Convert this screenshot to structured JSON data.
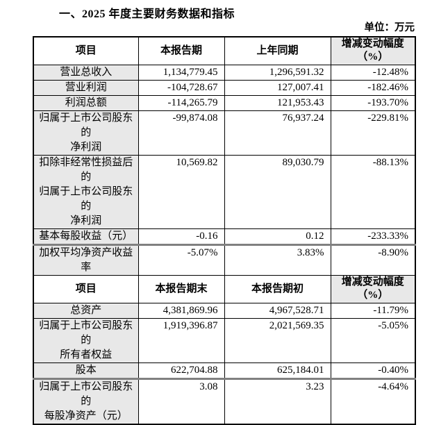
{
  "page": {
    "title": "一、2025 年度主要财务数据和指标",
    "unit_label": "单位：万元"
  },
  "colors": {
    "label_bg": "#e8e8e8",
    "border": "#000000",
    "divider": "#808080"
  },
  "table": {
    "sections": [
      {
        "headers": [
          "项目",
          "本报告期",
          "上年同期"
        ],
        "change_header_lines": [
          "增减变动幅度",
          "（%）"
        ],
        "rows": [
          {
            "label_lines": [
              "营业总收入"
            ],
            "current": "1,134,779.45",
            "prior": "1,296,591.32",
            "change": "-12.48%"
          },
          {
            "label_lines": [
              "营业利润"
            ],
            "current": "-104,728.67",
            "prior": "127,007.41",
            "change": "-182.46%"
          },
          {
            "label_lines": [
              "利润总额"
            ],
            "current": "-114,265.79",
            "prior": "121,953.43",
            "change": "-193.70%"
          },
          {
            "label_lines": [
              "归属于上市公司股东的",
              "净利润"
            ],
            "current": "-99,874.08",
            "prior": "76,937.24",
            "change": "-229.81%"
          },
          {
            "label_lines": [
              "扣除非经常性损益后的",
              "归属于上市公司股东的",
              "净利润"
            ],
            "current": "10,569.82",
            "prior": "89,030.79",
            "change": "-88.13%"
          },
          {
            "label_lines": [
              "基本每股收益（元）"
            ],
            "current": "-0.16",
            "prior": "0.12",
            "change": "-233.33%"
          },
          {
            "label_lines": [
              "加权平均净资产收益率"
            ],
            "current": "-5.07%",
            "prior": "3.83%",
            "change": "-8.90%",
            "thick_top": true
          }
        ]
      },
      {
        "headers": [
          "项目",
          "本报告期末",
          "本报告期初"
        ],
        "change_header_lines": [
          "增减变动幅度",
          "（%）"
        ],
        "rows": [
          {
            "label_lines": [
              "总资产"
            ],
            "current": "4,381,869.96",
            "prior": "4,967,528.71",
            "change": "-11.79%"
          },
          {
            "label_lines": [
              "归属于上市公司股东的",
              "所有者权益"
            ],
            "current": "1,919,396.87",
            "prior": "2,021,569.35",
            "change": "-5.05%"
          },
          {
            "label_lines": [
              "股本"
            ],
            "current": "622,704.88",
            "prior": "625,184.01",
            "change": "-0.40%"
          },
          {
            "label_lines": [
              "归属于上市公司股东的",
              "每股净资产（元）"
            ],
            "current": "3.08",
            "prior": "3.23",
            "change": "-4.64%",
            "thick_top": true
          }
        ]
      }
    ]
  }
}
